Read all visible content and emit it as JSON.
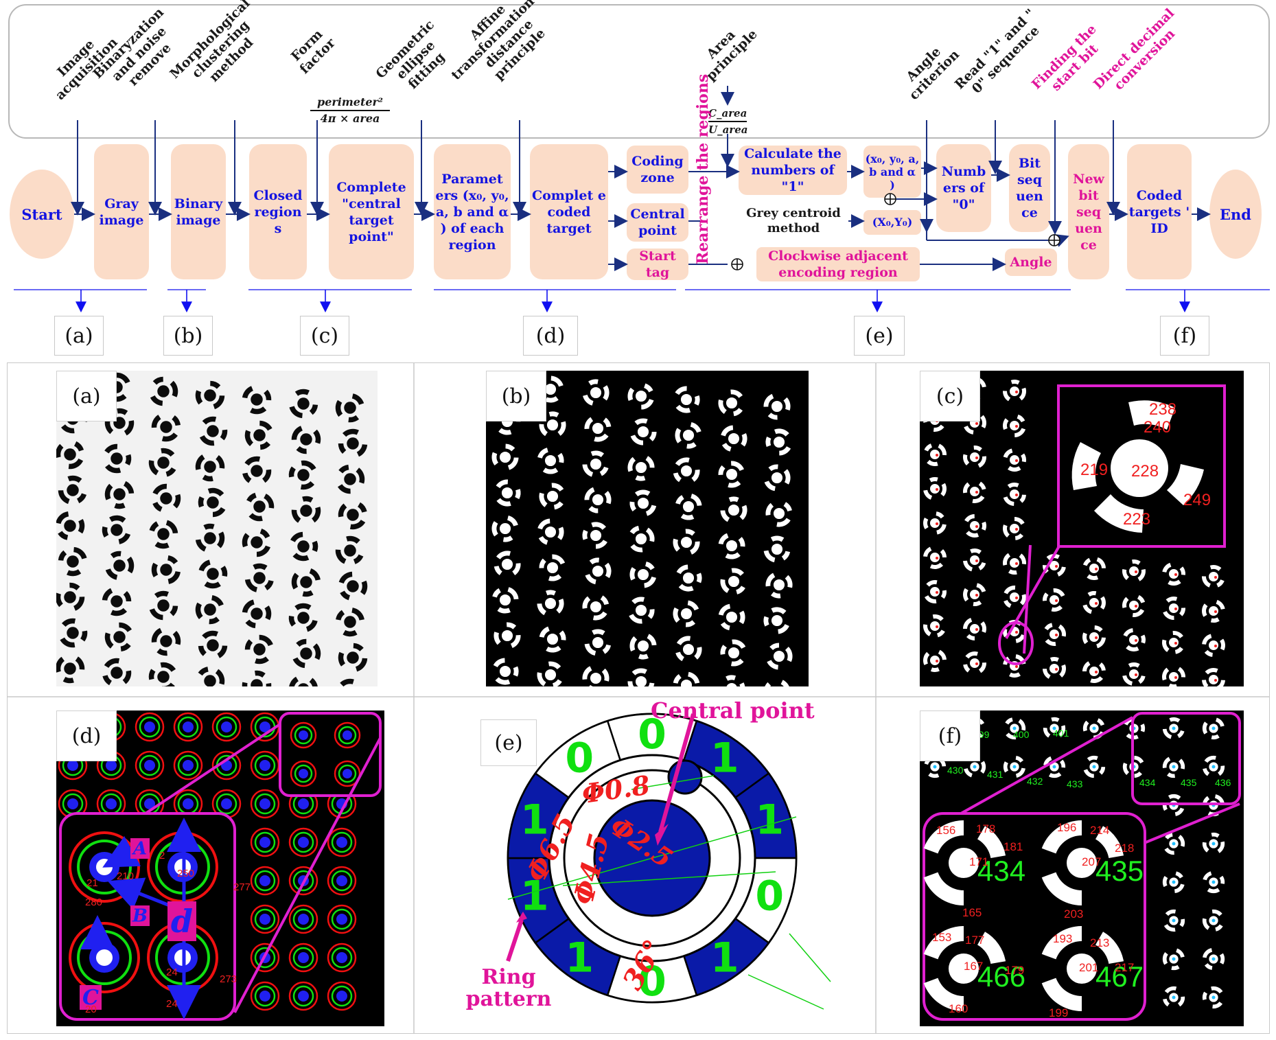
{
  "top_labels": [
    {
      "text": "Image\nacquisition",
      "color": "dark"
    },
    {
      "text": "Binaryzation\nand noise\nremove",
      "color": "dark"
    },
    {
      "text": "Morphological\nclustering\nmethod",
      "color": "dark"
    },
    {
      "text": "Form\nfactor",
      "color": "dark"
    },
    {
      "text": "Geometric\nellipse\nfitting",
      "color": "dark"
    },
    {
      "text": "Affine\ntransformation +\ndistance\nprinciple",
      "color": "dark"
    },
    {
      "text": "Area\nprinciple",
      "color": "dark"
    },
    {
      "text": "Angle\ncriterion",
      "color": "dark"
    },
    {
      "text": "Read \"1\" and \"\n0\" sequence",
      "color": "dark"
    },
    {
      "text": "Finding the\nstart bit",
      "color": "pink"
    },
    {
      "text": "Direct decimal\nconversion",
      "color": "pink"
    }
  ],
  "form_factor_formula": {
    "numerator": "perimeter²",
    "denominator": "4π × area"
  },
  "area_formula": {
    "numerator": "C_area",
    "denominator": "U_area"
  },
  "flow": {
    "start": "Start",
    "end": "End",
    "gray_image": "Gray image",
    "binary_image": "Binary image",
    "closed_regions": "Closed region s",
    "complete_central": "Complete \"central target point\"",
    "parameters": "Paramet ers (x₀, y₀, a, b and α ) of each region",
    "complete_coded": "Complet e coded target",
    "coding_zone": "Coding zone",
    "central_point": "Central point",
    "start_tag": "Start tag",
    "rearrange": "Rearrange the regions",
    "calc_ones": "Calculate the numbers of \"1\"",
    "grey_centroid": "Grey centroid method",
    "clockwise": "Clockwise adjacent encoding region",
    "params2": "(x₀, y₀, a, b and α )",
    "centroid_xy": "(X₀,Y₀)",
    "num_zero": "Numb ers of \"0\"",
    "bit_seq": "Bit seq uen ce",
    "angle": "Angle",
    "new_bit_seq": "New bit seq uen ce",
    "coded_id": "Coded targets ' ID"
  },
  "stage_letters": [
    "(a)",
    "(b)",
    "(c)",
    "(d)",
    "(e)",
    "(f)"
  ],
  "panel_c_inset": [
    "238",
    "240",
    "219",
    "228",
    "249",
    "223"
  ],
  "panel_d_labels": {
    "A": "A",
    "B": "B",
    "C": "C",
    "d": "d",
    "nums": [
      "210",
      "250",
      "21",
      "2",
      "280",
      "277",
      "273",
      "20",
      "24",
      "24"
    ]
  },
  "panel_e": {
    "central_point": "Central point",
    "ring_pattern": "Ring\npattern",
    "bits": [
      "0",
      "1",
      "1",
      "0",
      "1",
      "0",
      "1",
      "1",
      "1",
      "0"
    ],
    "dims": [
      "Φ0.8",
      "Φ2.5",
      "Φ6.5",
      "Φ4.5",
      "36°"
    ]
  },
  "panel_f_inset": {
    "ids": [
      "434",
      "435",
      "466",
      "467"
    ],
    "small": [
      "156",
      "178",
      "181",
      "171",
      "165",
      "196",
      "214",
      "218",
      "207",
      "203",
      "153",
      "177",
      "167",
      "179",
      "160",
      "193",
      "213",
      "201",
      "217",
      "199"
    ],
    "top_ids": [
      "398",
      "399",
      "400",
      "401",
      "430",
      "431",
      "432",
      "433",
      "434",
      "435",
      "436"
    ]
  },
  "colors": {
    "box": "#fbdcc8",
    "blue": "#1414e0",
    "pink": "#e0149a",
    "arrow": "#1a2f80",
    "ring_blue": "#0a1aa8",
    "green": "#10e010",
    "red": "#e01010"
  }
}
